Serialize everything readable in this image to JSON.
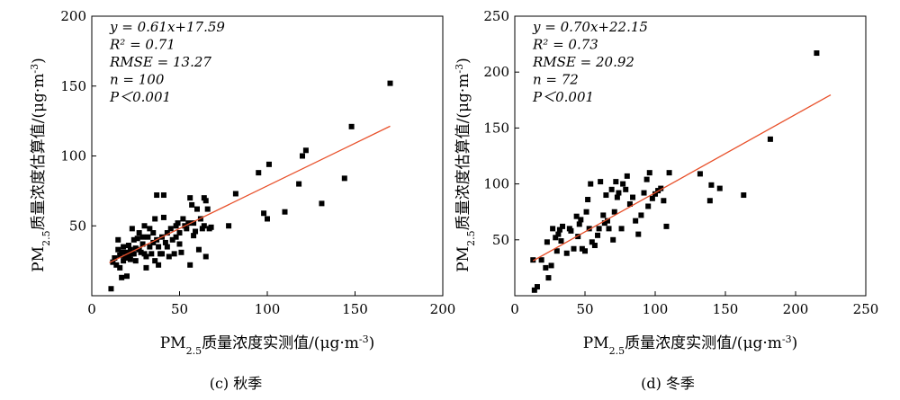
{
  "chart_data": [
    {
      "type": "scatter",
      "panel": "c",
      "caption": "(c) 秋季",
      "xlabel": "PM2.5质量浓度实测值/(μg·m⁻³)",
      "ylabel": "PM2.5质量浓度估算值/(μg·m⁻³)",
      "xlim": [
        0,
        200
      ],
      "ylim": [
        0,
        200
      ],
      "xticks": [
        "0",
        "50",
        "100",
        "150",
        "200"
      ],
      "yticks": [
        "50",
        "100",
        "150",
        "200"
      ],
      "stats": [
        "y = 0.61x+17.59",
        "R² = 0.71",
        "RMSE = 13.27",
        "n = 100",
        "P＜0.001"
      ],
      "fit": {
        "slope": 0.61,
        "intercept": 17.59,
        "x_range": [
          10,
          170
        ],
        "color": "#e8502a"
      },
      "marker_color": "#000000",
      "points": [
        [
          11,
          5
        ],
        [
          12,
          24
        ],
        [
          13,
          27
        ],
        [
          14,
          22
        ],
        [
          15,
          33
        ],
        [
          15,
          40
        ],
        [
          16,
          20
        ],
        [
          16,
          29
        ],
        [
          17,
          13
        ],
        [
          17,
          31
        ],
        [
          18,
          35
        ],
        [
          18,
          25
        ],
        [
          19,
          27
        ],
        [
          20,
          31
        ],
        [
          20,
          14
        ],
        [
          21,
          28
        ],
        [
          21,
          36
        ],
        [
          22,
          26
        ],
        [
          22,
          33
        ],
        [
          23,
          48
        ],
        [
          23,
          30
        ],
        [
          24,
          30
        ],
        [
          24,
          40
        ],
        [
          25,
          25
        ],
        [
          25,
          34
        ],
        [
          26,
          41
        ],
        [
          27,
          33
        ],
        [
          27,
          45
        ],
        [
          28,
          31
        ],
        [
          29,
          42
        ],
        [
          29,
          37
        ],
        [
          30,
          50
        ],
        [
          30,
          30
        ],
        [
          31,
          28
        ],
        [
          31,
          20
        ],
        [
          32,
          42
        ],
        [
          33,
          35
        ],
        [
          33,
          48
        ],
        [
          34,
          30
        ],
        [
          35,
          45
        ],
        [
          35,
          38
        ],
        [
          36,
          55
        ],
        [
          36,
          25
        ],
        [
          37,
          72
        ],
        [
          37,
          40
        ],
        [
          38,
          35
        ],
        [
          38,
          22
        ],
        [
          39,
          30
        ],
        [
          40,
          42
        ],
        [
          40,
          30
        ],
        [
          41,
          72
        ],
        [
          41,
          56
        ],
        [
          42,
          38
        ],
        [
          43,
          45
        ],
        [
          43,
          35
        ],
        [
          44,
          28
        ],
        [
          45,
          48
        ],
        [
          46,
          40
        ],
        [
          47,
          30
        ],
        [
          48,
          50
        ],
        [
          48,
          42
        ],
        [
          49,
          52
        ],
        [
          50,
          45
        ],
        [
          50,
          37
        ],
        [
          51,
          31
        ],
        [
          52,
          55
        ],
        [
          53,
          50
        ],
        [
          54,
          48
        ],
        [
          55,
          52
        ],
        [
          56,
          70
        ],
        [
          56,
          22
        ],
        [
          57,
          65
        ],
        [
          58,
          52
        ],
        [
          58,
          43
        ],
        [
          59,
          46
        ],
        [
          60,
          62
        ],
        [
          61,
          33
        ],
        [
          62,
          55
        ],
        [
          63,
          48
        ],
        [
          64,
          70
        ],
        [
          64,
          50
        ],
        [
          65,
          28
        ],
        [
          65,
          68
        ],
        [
          66,
          62
        ],
        [
          67,
          48
        ],
        [
          68,
          49
        ],
        [
          78,
          50
        ],
        [
          82,
          73
        ],
        [
          95,
          88
        ],
        [
          98,
          59
        ],
        [
          100,
          55
        ],
        [
          101,
          94
        ],
        [
          110,
          60
        ],
        [
          118,
          80
        ],
        [
          120,
          100
        ],
        [
          122,
          104
        ],
        [
          131,
          66
        ],
        [
          144,
          84
        ],
        [
          148,
          121
        ],
        [
          170,
          152
        ]
      ]
    },
    {
      "type": "scatter",
      "panel": "d",
      "caption": "(d) 冬季",
      "xlabel": "PM2.5质量浓度实测值/(μg·m⁻³)",
      "ylabel": "PM2.5质量浓度估算值/(μg·m⁻³)",
      "xlim": [
        0,
        250
      ],
      "ylim": [
        0,
        250
      ],
      "xticks": [
        "0",
        "50",
        "100",
        "150",
        "200",
        "250"
      ],
      "yticks": [
        "50",
        "100",
        "150",
        "200",
        "250"
      ],
      "stats": [
        "y = 0.70x+22.15",
        "R² = 0.73",
        "RMSE = 20.92",
        "n = 72",
        "P＜0.001"
      ],
      "fit": {
        "slope": 0.7,
        "intercept": 22.15,
        "x_range": [
          13,
          225
        ],
        "color": "#e8502a"
      },
      "marker_color": "#000000",
      "points": [
        [
          13,
          32
        ],
        [
          14,
          5
        ],
        [
          16,
          8
        ],
        [
          19,
          32
        ],
        [
          22,
          25
        ],
        [
          23,
          48
        ],
        [
          24,
          16
        ],
        [
          26,
          27
        ],
        [
          27,
          60
        ],
        [
          29,
          52
        ],
        [
          30,
          40
        ],
        [
          31,
          55
        ],
        [
          32,
          59
        ],
        [
          33,
          49
        ],
        [
          34,
          62
        ],
        [
          37,
          38
        ],
        [
          39,
          60
        ],
        [
          40,
          58
        ],
        [
          42,
          42
        ],
        [
          44,
          71
        ],
        [
          45,
          53
        ],
        [
          46,
          64
        ],
        [
          47,
          68
        ],
        [
          48,
          42
        ],
        [
          50,
          40
        ],
        [
          51,
          75
        ],
        [
          52,
          86
        ],
        [
          53,
          60
        ],
        [
          54,
          100
        ],
        [
          55,
          48
        ],
        [
          57,
          45
        ],
        [
          59,
          54
        ],
        [
          60,
          60
        ],
        [
          61,
          102
        ],
        [
          63,
          72
        ],
        [
          64,
          65
        ],
        [
          65,
          90
        ],
        [
          66,
          67
        ],
        [
          67,
          60
        ],
        [
          69,
          95
        ],
        [
          70,
          50
        ],
        [
          71,
          75
        ],
        [
          72,
          102
        ],
        [
          73,
          88
        ],
        [
          74,
          92
        ],
        [
          76,
          60
        ],
        [
          77,
          100
        ],
        [
          79,
          95
        ],
        [
          80,
          107
        ],
        [
          82,
          82
        ],
        [
          84,
          88
        ],
        [
          86,
          67
        ],
        [
          88,
          55
        ],
        [
          90,
          72
        ],
        [
          92,
          92
        ],
        [
          94,
          104
        ],
        [
          95,
          80
        ],
        [
          96,
          110
        ],
        [
          98,
          87
        ],
        [
          100,
          91
        ],
        [
          102,
          94
        ],
        [
          104,
          96
        ],
        [
          106,
          85
        ],
        [
          108,
          62
        ],
        [
          110,
          110
        ],
        [
          132,
          109
        ],
        [
          139,
          85
        ],
        [
          140,
          99
        ],
        [
          146,
          96
        ],
        [
          163,
          90
        ],
        [
          182,
          140
        ],
        [
          215,
          217
        ]
      ]
    }
  ]
}
